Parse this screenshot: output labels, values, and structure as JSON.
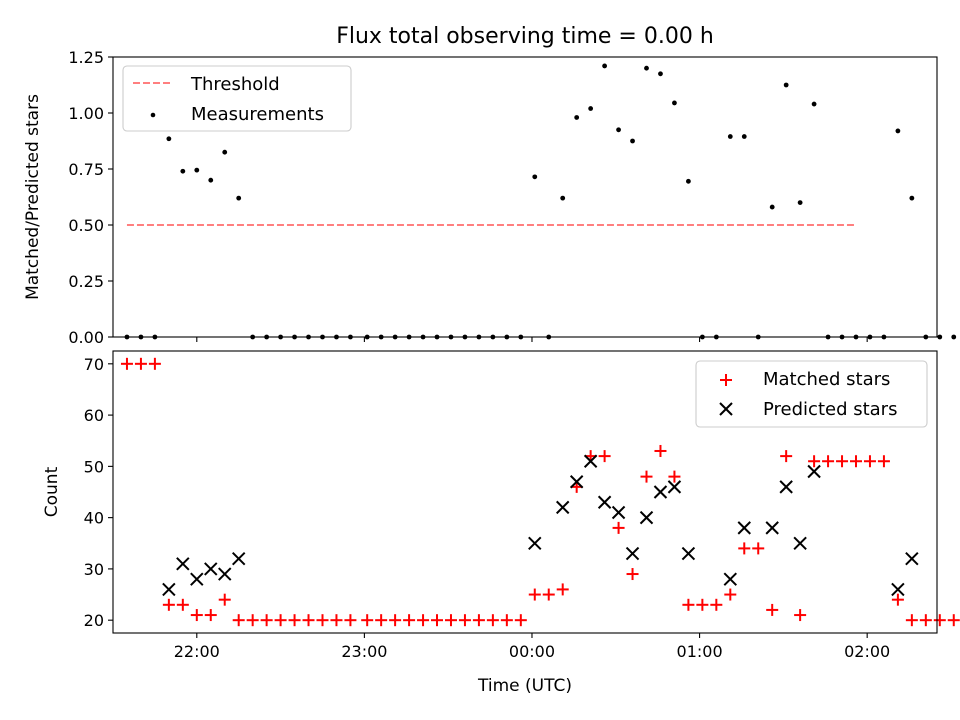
{
  "chart_data": [
    {
      "type": "scatter",
      "title": "Flux total observing time = 0.00 h",
      "xlabel": "",
      "ylabel": "Matched/Predicted stars",
      "xlim": [
        -30,
        265
      ],
      "ylim": [
        0,
        1.25
      ],
      "x_ticks": [
        {
          "value": 0,
          "label": ""
        },
        {
          "value": 60,
          "label": ""
        },
        {
          "value": 120,
          "label": ""
        },
        {
          "value": 180,
          "label": ""
        },
        {
          "value": 240,
          "label": ""
        }
      ],
      "y_ticks": [
        {
          "value": 0,
          "label": "0.00"
        },
        {
          "value": 0.25,
          "label": "0.25"
        },
        {
          "value": 0.5,
          "label": "0.50"
        },
        {
          "value": 0.75,
          "label": "0.75"
        },
        {
          "value": 1.0,
          "label": "1.00"
        },
        {
          "value": 1.25,
          "label": "1.25"
        }
      ],
      "grid": false,
      "legend": "top-left",
      "threshold": {
        "name": "Threshold",
        "value": 0.5,
        "x_range": [
          -25,
          236
        ],
        "color": "#ff7f7f"
      },
      "series": [
        {
          "name": "Measurements",
          "color": "#000000",
          "marker": "dot",
          "points": [
            [
              -25,
              0
            ],
            [
              -20,
              0
            ],
            [
              -15,
              0
            ],
            [
              -10,
              0.885
            ],
            [
              -5,
              0.74
            ],
            [
              0,
              0.745
            ],
            [
              5,
              0.7
            ],
            [
              10,
              0.825
            ],
            [
              15,
              0.62
            ],
            [
              20,
              0
            ],
            [
              25,
              0
            ],
            [
              30,
              0
            ],
            [
              35,
              0
            ],
            [
              40,
              0
            ],
            [
              45,
              0
            ],
            [
              50,
              0
            ],
            [
              55,
              0
            ],
            [
              61,
              0
            ],
            [
              66,
              0
            ],
            [
              71,
              0
            ],
            [
              76,
              0
            ],
            [
              81,
              0
            ],
            [
              86,
              0
            ],
            [
              91,
              0
            ],
            [
              96,
              0
            ],
            [
              101,
              0
            ],
            [
              106,
              0
            ],
            [
              111,
              0
            ],
            [
              116,
              0
            ],
            [
              121,
              0.715
            ],
            [
              126,
              0
            ],
            [
              131,
              0.62
            ],
            [
              136,
              0.98
            ],
            [
              141,
              1.02
            ],
            [
              146,
              1.21
            ],
            [
              151,
              0.925
            ],
            [
              156,
              0.875
            ],
            [
              161,
              1.2
            ],
            [
              166,
              1.175
            ],
            [
              171,
              1.045
            ],
            [
              176,
              0.695
            ],
            [
              181,
              0
            ],
            [
              186,
              0
            ],
            [
              191,
              0.895
            ],
            [
              196,
              0.895
            ],
            [
              201,
              0
            ],
            [
              206,
              0.58
            ],
            [
              211,
              1.125
            ],
            [
              216,
              0.6
            ],
            [
              221,
              1.04
            ],
            [
              226,
              0
            ],
            [
              231,
              0
            ],
            [
              236,
              0
            ],
            [
              241,
              0
            ],
            [
              246,
              0
            ],
            [
              251,
              0.92
            ],
            [
              256,
              0.62
            ],
            [
              261,
              0
            ],
            [
              266,
              0
            ],
            [
              271,
              0
            ],
            [
              276,
              0
            ]
          ]
        }
      ]
    },
    {
      "type": "scatter",
      "title": "",
      "xlabel": "Time (UTC)",
      "ylabel": "Count",
      "xlim": [
        -30,
        265
      ],
      "ylim": [
        17.5,
        72.5
      ],
      "x_ticks": [
        {
          "value": 0,
          "label": "22:00"
        },
        {
          "value": 60,
          "label": "23:00"
        },
        {
          "value": 120,
          "label": "00:00"
        },
        {
          "value": 180,
          "label": "01:00"
        },
        {
          "value": 240,
          "label": "02:00"
        }
      ],
      "y_ticks": [
        {
          "value": 20,
          "label": "20"
        },
        {
          "value": 30,
          "label": "30"
        },
        {
          "value": 40,
          "label": "40"
        },
        {
          "value": 50,
          "label": "50"
        },
        {
          "value": 60,
          "label": "60"
        },
        {
          "value": 70,
          "label": "70"
        }
      ],
      "grid": false,
      "legend": "top-right",
      "series": [
        {
          "name": "Matched stars",
          "color": "#ff0000",
          "marker": "plus",
          "points": [
            [
              -25,
              70
            ],
            [
              -20,
              70
            ],
            [
              -15,
              70
            ],
            [
              -10,
              23
            ],
            [
              -5,
              23
            ],
            [
              0,
              21
            ],
            [
              5,
              21
            ],
            [
              10,
              24
            ],
            [
              15,
              20
            ],
            [
              20,
              20
            ],
            [
              25,
              20
            ],
            [
              30,
              20
            ],
            [
              35,
              20
            ],
            [
              40,
              20
            ],
            [
              45,
              20
            ],
            [
              50,
              20
            ],
            [
              55,
              20
            ],
            [
              61,
              20
            ],
            [
              66,
              20
            ],
            [
              71,
              20
            ],
            [
              76,
              20
            ],
            [
              81,
              20
            ],
            [
              86,
              20
            ],
            [
              91,
              20
            ],
            [
              96,
              20
            ],
            [
              101,
              20
            ],
            [
              106,
              20
            ],
            [
              111,
              20
            ],
            [
              116,
              20
            ],
            [
              121,
              25
            ],
            [
              126,
              25
            ],
            [
              131,
              26
            ],
            [
              136,
              46
            ],
            [
              141,
              52
            ],
            [
              146,
              52
            ],
            [
              151,
              38
            ],
            [
              156,
              29
            ],
            [
              161,
              48
            ],
            [
              166,
              53
            ],
            [
              171,
              48
            ],
            [
              176,
              23
            ],
            [
              181,
              23
            ],
            [
              186,
              23
            ],
            [
              191,
              25
            ],
            [
              196,
              34
            ],
            [
              201,
              34
            ],
            [
              206,
              22
            ],
            [
              211,
              52
            ],
            [
              216,
              21
            ],
            [
              221,
              51
            ],
            [
              226,
              51
            ],
            [
              231,
              51
            ],
            [
              236,
              51
            ],
            [
              241,
              51
            ],
            [
              246,
              51
            ],
            [
              251,
              24
            ],
            [
              256,
              20
            ],
            [
              261,
              20
            ],
            [
              266,
              20
            ],
            [
              271,
              20
            ],
            [
              276,
              20
            ]
          ]
        },
        {
          "name": "Predicted stars",
          "color": "#000000",
          "marker": "x",
          "points": [
            [
              -10,
              26
            ],
            [
              -5,
              31
            ],
            [
              0,
              28
            ],
            [
              5,
              30
            ],
            [
              10,
              29
            ],
            [
              15,
              32
            ],
            [
              121,
              35
            ],
            [
              131,
              42
            ],
            [
              136,
              47
            ],
            [
              141,
              51
            ],
            [
              146,
              43
            ],
            [
              151,
              41
            ],
            [
              156,
              33
            ],
            [
              161,
              40
            ],
            [
              166,
              45
            ],
            [
              171,
              46
            ],
            [
              176,
              33
            ],
            [
              191,
              28
            ],
            [
              196,
              38
            ],
            [
              206,
              38
            ],
            [
              211,
              46
            ],
            [
              216,
              35
            ],
            [
              221,
              49
            ],
            [
              251,
              26
            ],
            [
              256,
              32
            ]
          ]
        }
      ]
    }
  ]
}
